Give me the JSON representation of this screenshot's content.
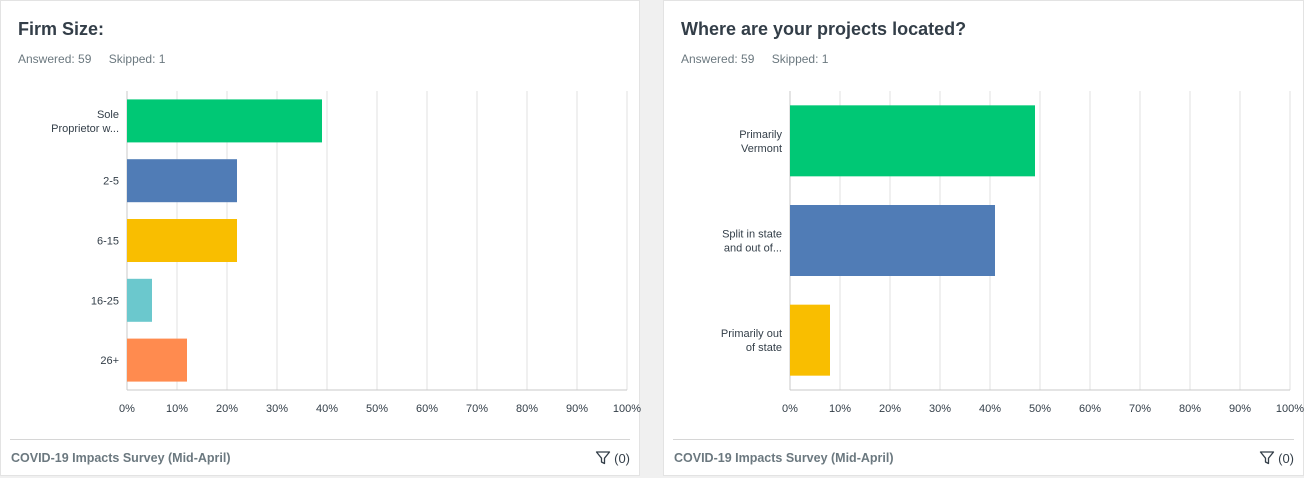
{
  "cards": [
    {
      "title": "Firm Size:",
      "answered": "Answered: 59",
      "skipped": "Skipped: 1",
      "survey": "COVID-19 Impacts Survey (Mid-April)",
      "filter_label": "(0)",
      "chart_data": {
        "type": "bar",
        "orientation": "horizontal",
        "categories": [
          [
            "Sole",
            "Proprietor w..."
          ],
          [
            "2-5"
          ],
          [
            "6-15"
          ],
          [
            "16-25"
          ],
          [
            "26+"
          ]
        ],
        "values": [
          39,
          22,
          22,
          5,
          12
        ],
        "colors": [
          "#00c875",
          "#507cb6",
          "#f9be00",
          "#6bc8cd",
          "#ff8b4f"
        ],
        "xlim": [
          0,
          100
        ],
        "xticks": [
          "0%",
          "10%",
          "20%",
          "30%",
          "40%",
          "50%",
          "60%",
          "70%",
          "80%",
          "90%",
          "100%"
        ],
        "grid": true
      }
    },
    {
      "title": "Where are your projects located?",
      "answered": "Answered: 59",
      "skipped": "Skipped: 1",
      "survey": "COVID-19 Impacts Survey (Mid-April)",
      "filter_label": "(0)",
      "chart_data": {
        "type": "bar",
        "orientation": "horizontal",
        "categories": [
          [
            "Primarily",
            "Vermont"
          ],
          [
            "Split in state",
            "and out of..."
          ],
          [
            "Primarily out",
            "of state"
          ]
        ],
        "values": [
          49,
          41,
          8
        ],
        "colors": [
          "#00c875",
          "#507cb6",
          "#f9be00"
        ],
        "xlim": [
          0,
          100
        ],
        "xticks": [
          "0%",
          "10%",
          "20%",
          "30%",
          "40%",
          "50%",
          "60%",
          "70%",
          "80%",
          "90%",
          "100%"
        ],
        "grid": true
      }
    }
  ]
}
